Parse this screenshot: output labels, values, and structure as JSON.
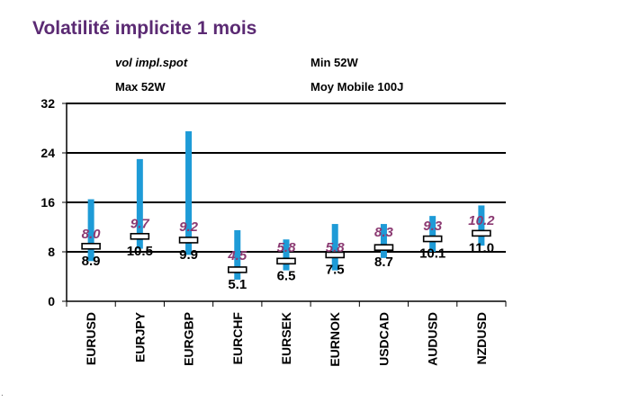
{
  "chart_data": {
    "type": "bar",
    "title": "Volatilité implicite 1 mois",
    "legend": {
      "spot": "vol impl.spot",
      "min": "Min 52W",
      "max": "Max 52W",
      "moving_avg": "Moy Mobile 100J"
    },
    "categories": [
      "EURUSD",
      "EURJPY",
      "EURGBP",
      "EURCHF",
      "EURSEK",
      "EURNOK",
      "USDCAD",
      "AUDUSD",
      "NZDUSD"
    ],
    "series": [
      {
        "name": "vol impl.spot",
        "values": [
          8.0,
          9.7,
          9.2,
          4.5,
          5.8,
          5.8,
          8.3,
          9.3,
          10.2
        ],
        "labels": [
          "8.0",
          "9.7",
          "9.2",
          "4.5",
          "5.8",
          "5.8",
          "8.3",
          "9.3",
          "10.2"
        ]
      },
      {
        "name": "Min 52W",
        "values": [
          6.5,
          8.5,
          7.5,
          3.5,
          5.0,
          5.0,
          7.0,
          8.0,
          9.0
        ]
      },
      {
        "name": "Max 52W",
        "values": [
          16.5,
          23.0,
          27.5,
          11.5,
          10.0,
          12.5,
          12.5,
          13.8,
          15.5
        ]
      },
      {
        "name": "Moy Mobile 100J",
        "values": [
          8.9,
          10.5,
          9.9,
          5.1,
          6.5,
          7.5,
          8.7,
          10.1,
          11.0
        ],
        "labels": [
          "8.9",
          "10.5",
          "9.9",
          "5.1",
          "6.5",
          "7.5",
          "8.7",
          "10.1",
          "11.0"
        ]
      }
    ],
    "yticks": [
      "0",
      "8",
      "16",
      "24",
      "32"
    ],
    "ylim": [
      0,
      32
    ],
    "grid": "horizontal",
    "colors": {
      "range_bar": "#1e9bd7",
      "spot_label": "#8b3a72",
      "title": "#5b2a73",
      "axis": "#000000"
    }
  },
  "corner_mark": "."
}
